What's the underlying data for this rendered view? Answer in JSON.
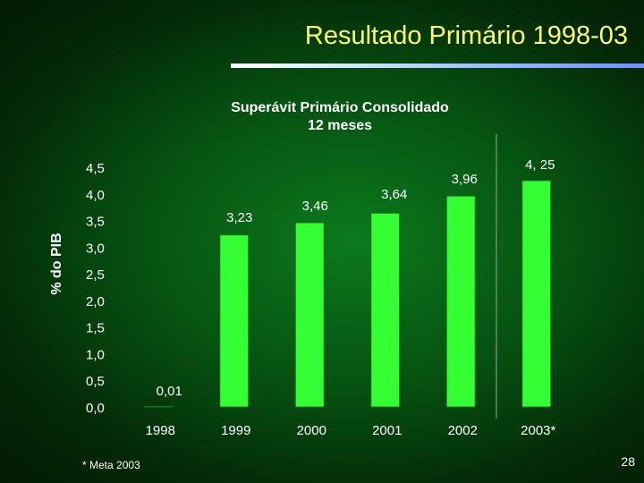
{
  "slide": {
    "title": "Resultado Primário 1998-03",
    "footnote": "* Meta 2003",
    "page_number": "28"
  },
  "colors": {
    "bar": "#33ff33",
    "title": "#ffff66",
    "text": "#ffffff"
  },
  "chart_data": {
    "type": "bar",
    "title": "Superávit Primário Consolidado",
    "subtitle": "12 meses",
    "ylabel": "% do PIB",
    "xlabel": "",
    "categories": [
      "1998",
      "1999",
      "2000",
      "2001",
      "2002",
      "2003*"
    ],
    "values": [
      0.01,
      3.23,
      3.46,
      3.64,
      3.96,
      4.25
    ],
    "value_labels": [
      "0,01",
      "3,23",
      "3,46",
      "3,64",
      "3,96",
      "4, 25"
    ],
    "ylim": [
      0,
      4.5
    ],
    "yticks": [
      {
        "value": 0.0,
        "label": "0,0"
      },
      {
        "value": 0.5,
        "label": "0,5"
      },
      {
        "value": 1.0,
        "label": "1,0"
      },
      {
        "value": 1.5,
        "label": "1,5"
      },
      {
        "value": 2.0,
        "label": "2,0"
      },
      {
        "value": 2.5,
        "label": "2,5"
      },
      {
        "value": 3.0,
        "label": "3,0"
      },
      {
        "value": 3.5,
        "label": "3,5"
      },
      {
        "value": 4.0,
        "label": "4,0"
      },
      {
        "value": 4.5,
        "label": "4,5"
      }
    ],
    "grid": false,
    "legend": "none"
  }
}
